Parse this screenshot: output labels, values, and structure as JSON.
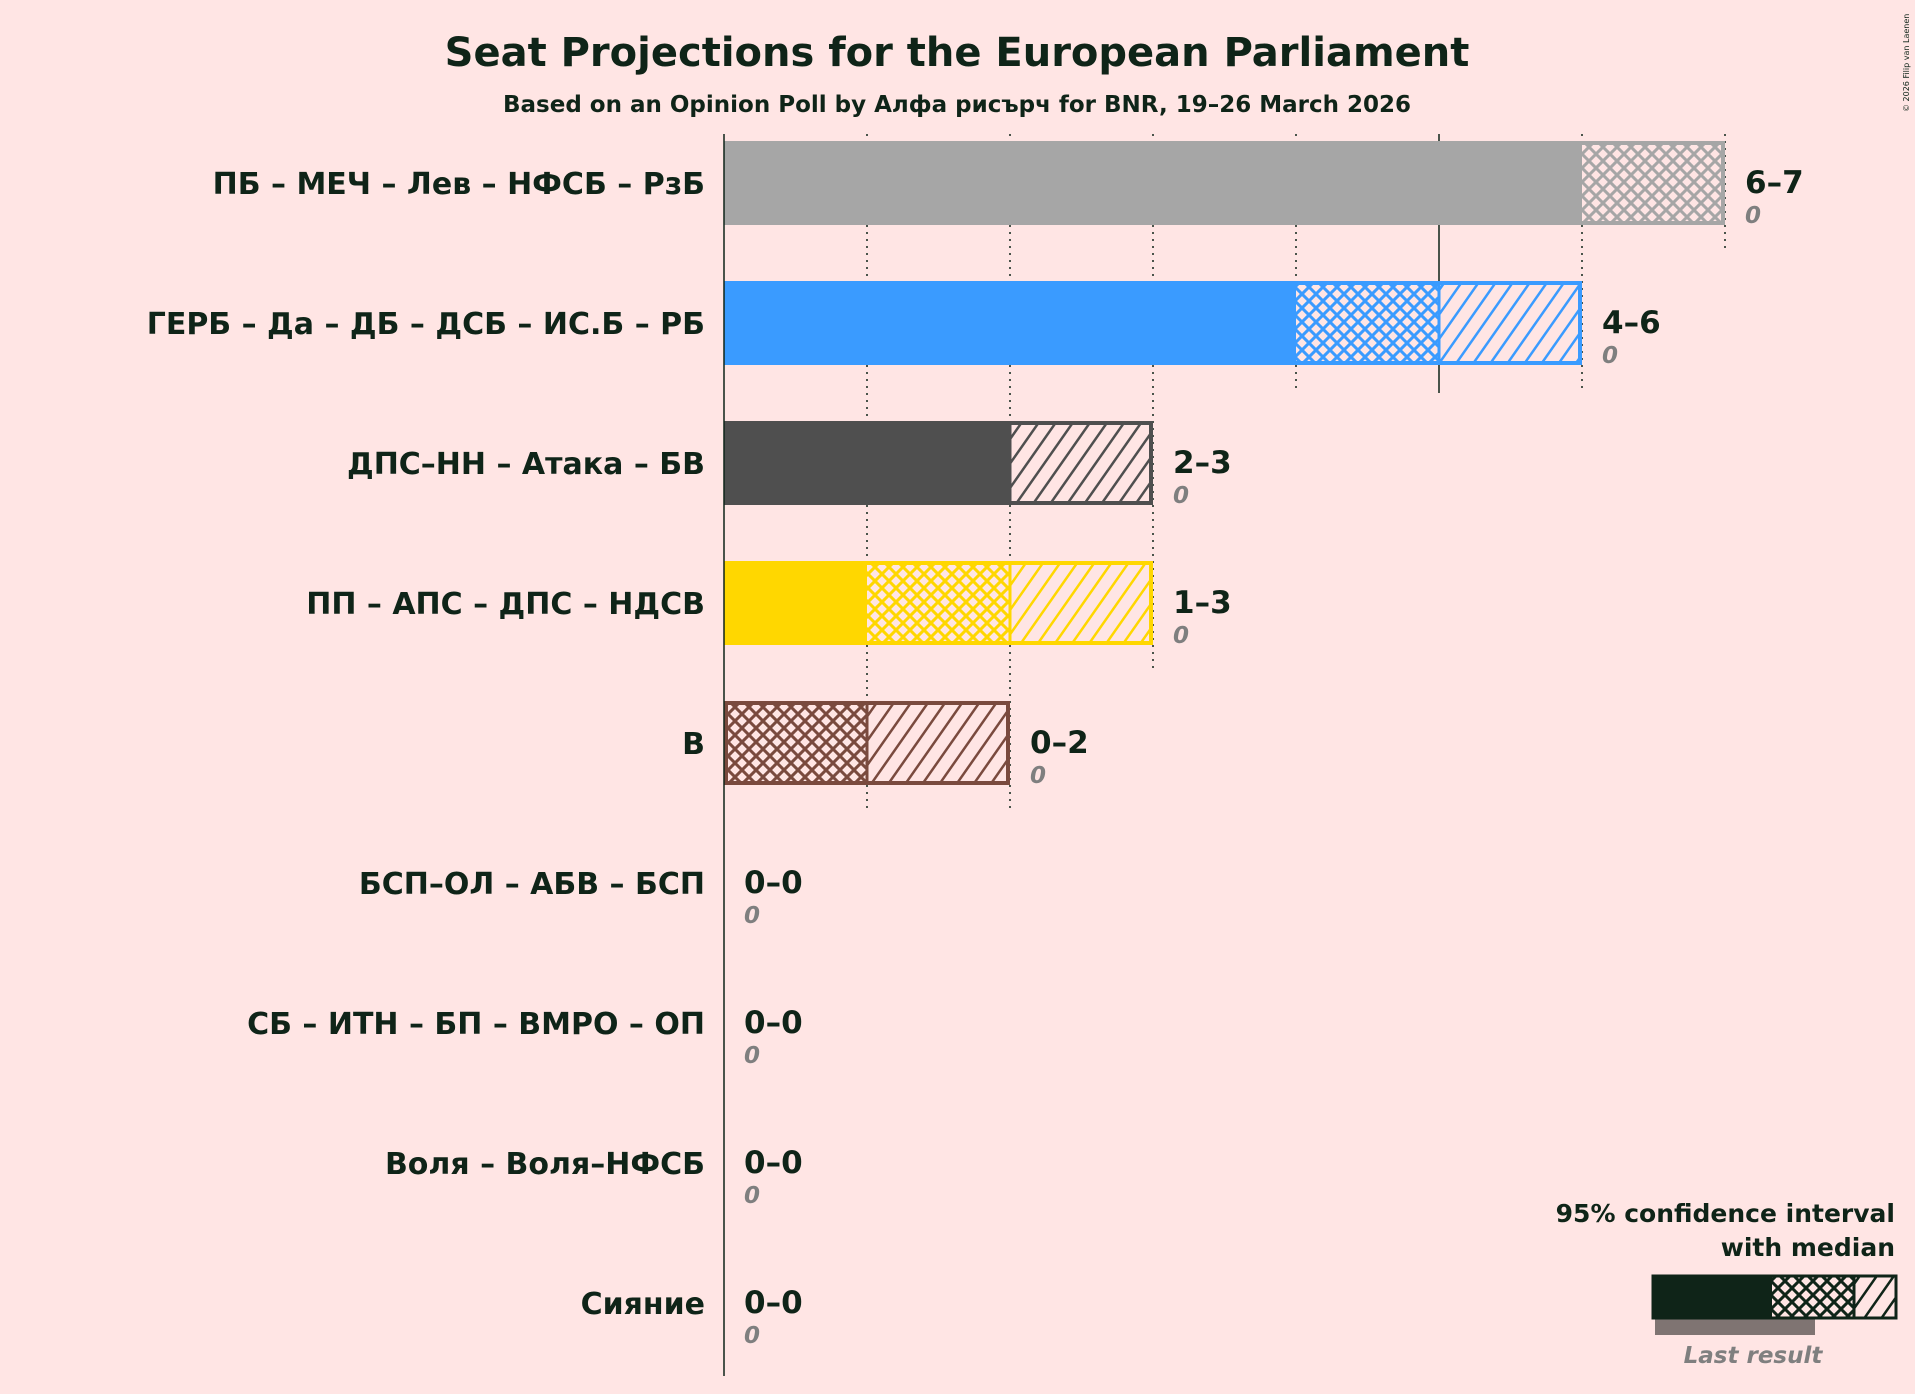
{
  "chart_data": {
    "type": "bar",
    "title": "Seat Projections for the European Parliament",
    "subtitle": "Based on an Opinion Poll by Алфа рисърч for BNR, 19–26 March 2026",
    "copyright": "© 2026 Filip van Laenen",
    "xlim": [
      0,
      7
    ],
    "major_tick": 5,
    "parties": [
      {
        "name": "ПБ – МЕЧ – Лев – НФСБ – РзБ",
        "low": 6,
        "median": 7,
        "high": 7,
        "range_label": "6–7",
        "last_result": 0,
        "last_label": "0",
        "color": "#A6A6A6"
      },
      {
        "name": "ГЕРБ – Да – ДБ – ДСБ – ИС.Б – РБ",
        "low": 4,
        "median": 5,
        "high": 6,
        "range_label": "4–6",
        "last_result": 0,
        "last_label": "0",
        "color": "#3A9BFF"
      },
      {
        "name": "ДПС–НН – Атака – БВ",
        "low": 2,
        "median": 2,
        "high": 3,
        "range_label": "2–3",
        "last_result": 0,
        "last_label": "0",
        "color": "#4F4F4F"
      },
      {
        "name": "ПП – АПС – ДПС – НДСВ",
        "low": 1,
        "median": 2,
        "high": 3,
        "range_label": "1–3",
        "last_result": 0,
        "last_label": "0",
        "color": "#FFD700"
      },
      {
        "name": "В",
        "low": 0,
        "median": 1,
        "high": 2,
        "range_label": "0–2",
        "last_result": 0,
        "last_label": "0",
        "color": "#7A4A3E"
      },
      {
        "name": "БСП–ОЛ – АБВ – БСП",
        "low": 0,
        "median": 0,
        "high": 0,
        "range_label": "0–0",
        "last_result": 0,
        "last_label": "0",
        "color": "#C8102E"
      },
      {
        "name": "СБ – ИТН – БП – ВМРО – ОП",
        "low": 0,
        "median": 0,
        "high": 0,
        "range_label": "0–0",
        "last_result": 0,
        "last_label": "0",
        "color": "#000000"
      },
      {
        "name": "Воля – Воля–НФСБ",
        "low": 0,
        "median": 0,
        "high": 0,
        "range_label": "0–0",
        "last_result": 0,
        "last_label": "0",
        "color": "#000000"
      },
      {
        "name": "Сияние",
        "low": 0,
        "median": 0,
        "high": 0,
        "range_label": "0–0",
        "last_result": 0,
        "last_label": "0",
        "color": "#000000"
      }
    ],
    "legend": {
      "line1": "95% confidence interval",
      "line2": "with median",
      "last_result": "Last result",
      "placement": "bottom-right",
      "color": "#0F2418",
      "last_color": "#7F7472"
    },
    "background": "#FFE5E4"
  }
}
